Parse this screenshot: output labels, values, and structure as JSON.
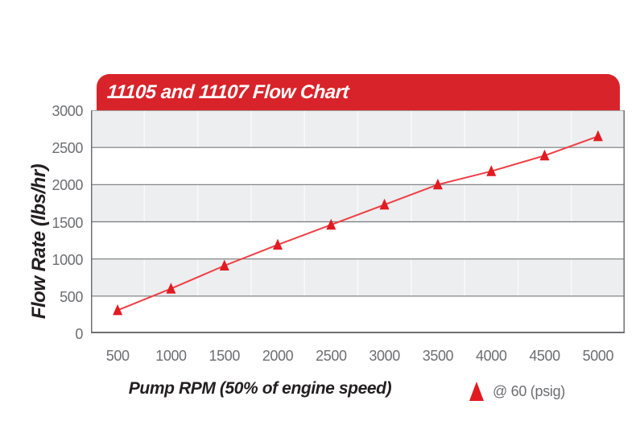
{
  "header": {
    "title": "11105 and 11107 Flow Chart"
  },
  "chart_data": {
    "type": "line",
    "title": "11105 and 11107 Flow Chart",
    "xlabel": "Pump RPM (50% of engine speed)",
    "ylabel": "Flow Rate (lbs/hr)",
    "categories": [
      500,
      1000,
      1500,
      2000,
      2500,
      3000,
      3500,
      4000,
      4500,
      5000
    ],
    "series": [
      {
        "name": "@ 60 (psig)",
        "marker": "triangle-up",
        "values": [
          310,
          600,
          910,
          1190,
          1460,
          1730,
          2000,
          2180,
          2390,
          2650
        ]
      }
    ],
    "ylim": [
      0,
      3000
    ],
    "ytick_step": 500,
    "yticks": [
      0,
      500,
      1000,
      1500,
      2000,
      2500,
      3000
    ],
    "grid": {
      "horizontal_major": true,
      "vertical_category_separators": true,
      "alternating_bands": true
    },
    "legend_position": "bottom-right"
  },
  "colors": {
    "header_red": "#d8232a",
    "header_text": "#ffffff",
    "marker_red": "#e11b22",
    "line_red": "#ee3e44",
    "band_gray": "#eceeef",
    "grid_line": "#77787a",
    "axis_line": "#6f7073",
    "vertical_grid": "#ffffff",
    "tick_label": "#6d6e71",
    "axis_title": "#231f20"
  }
}
